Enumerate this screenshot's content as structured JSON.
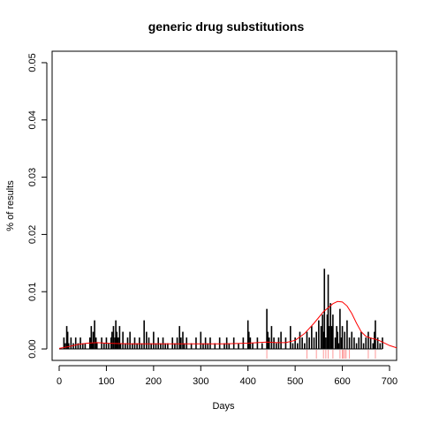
{
  "chart_data": {
    "type": "bar",
    "title": "generic drug substitutions",
    "xlabel": "Days",
    "ylabel": "% of results",
    "xlim": [
      -15,
      715
    ],
    "ylim": [
      -0.002,
      0.052
    ],
    "x_ticks": [
      0,
      100,
      200,
      300,
      400,
      500,
      600,
      700
    ],
    "x_tick_labels": [
      "0",
      "100",
      "200",
      "300",
      "400",
      "500",
      "600",
      "700"
    ],
    "y_ticks": [
      0.0,
      0.01,
      0.02,
      0.03,
      0.04,
      0.05
    ],
    "y_tick_labels": [
      "0.00",
      "0.01",
      "0.02",
      "0.03",
      "0.04",
      "0.05"
    ],
    "grid": false,
    "colors": {
      "bars": "#000000",
      "density": "#ff0000",
      "rug": "#ff9999"
    },
    "series": [
      {
        "type": "bar",
        "x": [
          10,
          13,
          16,
          18,
          20,
          25,
          30,
          35,
          40,
          45,
          50,
          55,
          65,
          68,
          70,
          72,
          75,
          78,
          80,
          90,
          95,
          100,
          105,
          110,
          112,
          115,
          118,
          120,
          122,
          125,
          128,
          130,
          135,
          140,
          145,
          150,
          155,
          160,
          165,
          170,
          175,
          180,
          185,
          190,
          195,
          200,
          205,
          210,
          215,
          220,
          225,
          230,
          240,
          245,
          250,
          255,
          258,
          262,
          265,
          270,
          280,
          290,
          300,
          305,
          310,
          315,
          320,
          330,
          340,
          350,
          355,
          360,
          370,
          380,
          390,
          400,
          402,
          405,
          410,
          420,
          430,
          440,
          442,
          445,
          450,
          455,
          460,
          465,
          470,
          480,
          490,
          495,
          500,
          505,
          510,
          515,
          520,
          525,
          530,
          535,
          540,
          545,
          550,
          555,
          558,
          560,
          562,
          565,
          568,
          570,
          572,
          575,
          578,
          580,
          585,
          588,
          590,
          592,
          595,
          598,
          600,
          605,
          610,
          615,
          620,
          625,
          630,
          635,
          640,
          645,
          650,
          655,
          660,
          665,
          668,
          670,
          675,
          680,
          685
        ],
        "values": [
          0.002,
          0.001,
          0.004,
          0.003,
          0.001,
          0.002,
          0.001,
          0.002,
          0.001,
          0.002,
          0.001,
          0.001,
          0.002,
          0.004,
          0.001,
          0.003,
          0.005,
          0.002,
          0.001,
          0.002,
          0.001,
          0.002,
          0.001,
          0.002,
          0.003,
          0.004,
          0.002,
          0.005,
          0.003,
          0.002,
          0.004,
          0.001,
          0.003,
          0.001,
          0.002,
          0.003,
          0.001,
          0.002,
          0.001,
          0.002,
          0.001,
          0.005,
          0.003,
          0.002,
          0.001,
          0.003,
          0.001,
          0.002,
          0.001,
          0.002,
          0.001,
          0.001,
          0.002,
          0.001,
          0.002,
          0.004,
          0.002,
          0.003,
          0.001,
          0.002,
          0.001,
          0.002,
          0.003,
          0.001,
          0.002,
          0.001,
          0.002,
          0.001,
          0.002,
          0.001,
          0.002,
          0.001,
          0.002,
          0.001,
          0.002,
          0.005,
          0.003,
          0.002,
          0.001,
          0.002,
          0.001,
          0.007,
          0.003,
          0.002,
          0.004,
          0.002,
          0.001,
          0.002,
          0.003,
          0.002,
          0.004,
          0.001,
          0.002,
          0.001,
          0.003,
          0.002,
          0.001,
          0.003,
          0.002,
          0.004,
          0.002,
          0.003,
          0.005,
          0.004,
          0.006,
          0.003,
          0.014,
          0.002,
          0.006,
          0.013,
          0.004,
          0.008,
          0.004,
          0.006,
          0.002,
          0.004,
          0.003,
          0.001,
          0.007,
          0.002,
          0.004,
          0.003,
          0.005,
          0.002,
          0.003,
          0.002,
          0.001,
          0.002,
          0.003,
          0.001,
          0.002,
          0.003,
          0.002,
          0.001,
          0.003,
          0.005,
          0.002,
          0.001,
          0.002
        ]
      },
      {
        "type": "line",
        "x": [
          0,
          20,
          40,
          60,
          80,
          100,
          150,
          200,
          250,
          300,
          350,
          400,
          420,
          440,
          460,
          480,
          500,
          520,
          540,
          560,
          580,
          590,
          600,
          610,
          620,
          630,
          640,
          650,
          660,
          670,
          680,
          700,
          715
        ],
        "values": [
          0.0001,
          0.0004,
          0.0008,
          0.001,
          0.0011,
          0.001,
          0.0009,
          0.0009,
          0.0009,
          0.0009,
          0.0009,
          0.001,
          0.0011,
          0.0012,
          0.0011,
          0.0011,
          0.0015,
          0.0027,
          0.0045,
          0.0065,
          0.0079,
          0.0083,
          0.0082,
          0.0075,
          0.0062,
          0.0045,
          0.003,
          0.0022,
          0.0019,
          0.0017,
          0.0014,
          0.0006,
          0.0002
        ]
      },
      {
        "type": "rug",
        "x": [
          440,
          525,
          545,
          560,
          565,
          570,
          580,
          595,
          600,
          602,
          605,
          608,
          615,
          655,
          670
        ]
      }
    ]
  }
}
